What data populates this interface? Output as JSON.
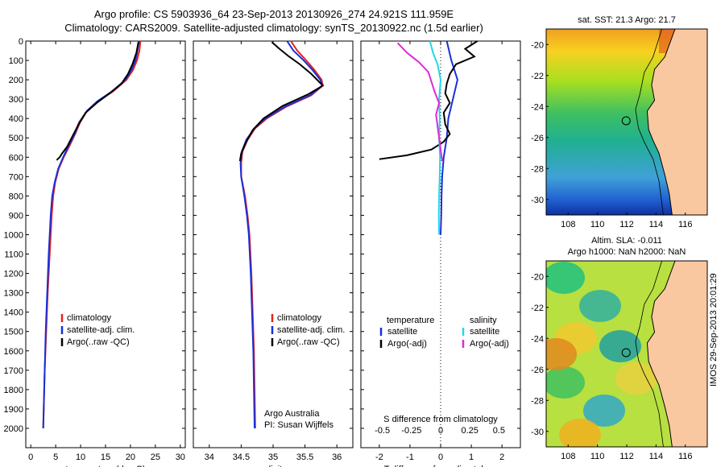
{
  "header": {
    "line1": "Argo profile: CS 5903936_64 23-Sep-2013 20130926_274 24.921S 111.959E",
    "line2": "Climatology: CARS2009. Satellite-adjusted climatology: synTS_20130922.nc (1.5d earlier)"
  },
  "timestamp": "IMOS 29-Sep-2013 20:01:29",
  "colors": {
    "climatology": "#e8201c",
    "satellite": "#1a2fd8",
    "argo": "#000000",
    "sal_satellite": "#22d8e8",
    "sal_argo": "#e028d8",
    "land": "#fac8a0"
  },
  "depth_ticks": [
    0,
    100,
    200,
    300,
    400,
    500,
    600,
    700,
    800,
    900,
    1000,
    1100,
    1200,
    1300,
    1400,
    1500,
    1600,
    1700,
    1800,
    1900,
    2000
  ],
  "chart_data": [
    {
      "type": "line",
      "name": "temperature_profile",
      "xlabel": "temperature (deg C)",
      "ylabel": "depth",
      "xlim": [
        -1,
        31
      ],
      "ylim": [
        2100,
        0
      ],
      "xticks": [
        0,
        5,
        10,
        15,
        20,
        25,
        30
      ],
      "legend": [
        "climatology",
        "satellite-adj. clim.",
        "Argo(..raw -QC)"
      ],
      "series": [
        {
          "name": "climatology",
          "color": "#e8201c",
          "points": [
            [
              22,
              0
            ],
            [
              21.8,
              50
            ],
            [
              21.3,
              100
            ],
            [
              20.5,
              150
            ],
            [
              19.2,
              200
            ],
            [
              16.5,
              260
            ],
            [
              13.5,
              310
            ],
            [
              11.3,
              360
            ],
            [
              9.9,
              420
            ],
            [
              8.9,
              480
            ],
            [
              7.8,
              540
            ],
            [
              6.6,
              600
            ],
            [
              5.6,
              660
            ],
            [
              4.9,
              730
            ],
            [
              4.5,
              800
            ],
            [
              4.2,
              900
            ],
            [
              3.8,
              1100
            ],
            [
              3.4,
              1300
            ],
            [
              3.1,
              1500
            ],
            [
              2.8,
              1700
            ],
            [
              2.6,
              1900
            ],
            [
              2.5,
              2000
            ]
          ]
        },
        {
          "name": "satellite-adj. clim.",
          "color": "#1a2fd8",
          "points": [
            [
              21.7,
              0
            ],
            [
              21.4,
              50
            ],
            [
              21,
              100
            ],
            [
              20.2,
              150
            ],
            [
              19,
              200
            ],
            [
              16.3,
              260
            ],
            [
              13.4,
              310
            ],
            [
              11.3,
              360
            ],
            [
              9.7,
              420
            ],
            [
              8.8,
              480
            ],
            [
              7.6,
              540
            ],
            [
              6.5,
              600
            ],
            [
              5.5,
              660
            ],
            [
              4.8,
              730
            ],
            [
              4.3,
              800
            ],
            [
              4.0,
              900
            ],
            [
              3.6,
              1100
            ],
            [
              3.3,
              1300
            ],
            [
              3.0,
              1500
            ],
            [
              2.8,
              1700
            ],
            [
              2.6,
              1900
            ],
            [
              2.5,
              2000
            ]
          ]
        },
        {
          "name": "Argo",
          "color": "#000000",
          "points": [
            [
              21.6,
              5
            ],
            [
              21.2,
              60
            ],
            [
              20.4,
              120
            ],
            [
              19.5,
              170
            ],
            [
              18.2,
              220
            ],
            [
              15.8,
              270
            ],
            [
              13.2,
              320
            ],
            [
              11.0,
              370
            ],
            [
              9.6,
              430
            ],
            [
              8.4,
              490
            ],
            [
              7.3,
              545
            ],
            [
              6.3,
              580
            ],
            [
              5.8,
              600
            ],
            [
              5.2,
              615
            ]
          ]
        }
      ]
    },
    {
      "type": "line",
      "name": "salinity_profile",
      "xlabel": "salinity",
      "xlim": [
        33.75,
        36.25
      ],
      "ylim": [
        2100,
        0
      ],
      "xticks": [
        34,
        34.5,
        35,
        35.5,
        36
      ],
      "xticklabels": [
        "34",
        "34.5",
        "35",
        "35.5",
        "36"
      ],
      "legend": [
        "climatology",
        "satellite-adj. clim.",
        "Argo(..raw -QC)"
      ],
      "credit": [
        "Argo Australia",
        "PI: Susan Wijffels"
      ],
      "series": [
        {
          "name": "climatology",
          "color": "#e8201c",
          "points": [
            [
              35.28,
              0
            ],
            [
              35.38,
              50
            ],
            [
              35.52,
              100
            ],
            [
              35.65,
              150
            ],
            [
              35.76,
              200
            ],
            [
              35.78,
              230
            ],
            [
              35.6,
              280
            ],
            [
              35.2,
              340
            ],
            [
              34.9,
              400
            ],
            [
              34.72,
              450
            ],
            [
              34.6,
              510
            ],
            [
              34.52,
              570
            ],
            [
              34.5,
              630
            ],
            [
              34.5,
              700
            ],
            [
              34.56,
              800
            ],
            [
              34.6,
              900
            ],
            [
              34.63,
              1000
            ],
            [
              34.66,
              1200
            ],
            [
              34.68,
              1400
            ],
            [
              34.7,
              1600
            ],
            [
              34.71,
              1800
            ],
            [
              34.72,
              2000
            ]
          ]
        },
        {
          "name": "satellite-adj. clim.",
          "color": "#1a2fd8",
          "points": [
            [
              35.22,
              0
            ],
            [
              35.32,
              50
            ],
            [
              35.48,
              100
            ],
            [
              35.62,
              150
            ],
            [
              35.74,
              200
            ],
            [
              35.77,
              230
            ],
            [
              35.58,
              280
            ],
            [
              35.18,
              340
            ],
            [
              34.88,
              400
            ],
            [
              34.71,
              450
            ],
            [
              34.58,
              510
            ],
            [
              34.51,
              570
            ],
            [
              34.49,
              630
            ],
            [
              34.5,
              700
            ],
            [
              34.55,
              800
            ],
            [
              34.59,
              900
            ],
            [
              34.62,
              1000
            ],
            [
              34.65,
              1200
            ],
            [
              34.67,
              1400
            ],
            [
              34.69,
              1600
            ],
            [
              34.7,
              1800
            ],
            [
              34.71,
              2000
            ]
          ]
        },
        {
          "name": "Argo",
          "color": "#000000",
          "points": [
            [
              34.98,
              5
            ],
            [
              35.1,
              40
            ],
            [
              35.25,
              80
            ],
            [
              35.42,
              120
            ],
            [
              35.6,
              170
            ],
            [
              35.72,
              210
            ],
            [
              35.78,
              230
            ],
            [
              35.55,
              275
            ],
            [
              35.15,
              335
            ],
            [
              34.85,
              400
            ],
            [
              34.68,
              460
            ],
            [
              34.58,
              520
            ],
            [
              34.5,
              580
            ],
            [
              34.48,
              620
            ]
          ]
        }
      ]
    },
    {
      "type": "line",
      "name": "difference_from_climatology",
      "xlabel": "T difference from climatology",
      "xlabel_top": "S difference from climatology",
      "xlim": [
        -2.6,
        2.6
      ],
      "ylim": [
        2100,
        0
      ],
      "xticks": [
        -2,
        -1,
        0,
        1,
        2
      ],
      "s_ticks": [
        -0.5,
        -0.25,
        0,
        0.25,
        0.5
      ],
      "legend_headers": [
        "temperature",
        "salinity"
      ],
      "legend": [
        "satellite",
        "Argo(-adj)",
        "satellite",
        "Argo(-adj)"
      ],
      "series": [
        {
          "name": "T satellite",
          "color": "#1a2fd8",
          "points": [
            [
              0.2,
              0
            ],
            [
              0.35,
              100
            ],
            [
              0.55,
              200
            ],
            [
              0.4,
              300
            ],
            [
              0.25,
              400
            ],
            [
              0.2,
              500
            ],
            [
              0.1,
              600
            ],
            [
              0.05,
              700
            ],
            [
              0.03,
              800
            ],
            [
              0.02,
              900
            ],
            [
              0.0,
              1000
            ]
          ]
        },
        {
          "name": "T Argo(-adj)",
          "color": "#000000",
          "points": [
            [
              1.2,
              0
            ],
            [
              0.8,
              40
            ],
            [
              1.1,
              80
            ],
            [
              0.5,
              120
            ],
            [
              0.3,
              170
            ],
            [
              0.2,
              220
            ],
            [
              0.15,
              270
            ],
            [
              0.3,
              320
            ],
            [
              0.1,
              370
            ],
            [
              0.15,
              430
            ],
            [
              0.3,
              480
            ],
            [
              0.1,
              520
            ],
            [
              -0.3,
              560
            ],
            [
              -1.1,
              590
            ],
            [
              -2.0,
              610
            ]
          ]
        },
        {
          "name": "S satellite",
          "color": "#22d8e8",
          "points": [
            [
              -0.35,
              0
            ],
            [
              -0.25,
              60
            ],
            [
              -0.1,
              120
            ],
            [
              0.0,
              200
            ],
            [
              -0.05,
              300
            ],
            [
              -0.03,
              400
            ],
            [
              -0.05,
              500
            ],
            [
              -0.02,
              600
            ],
            [
              -0.03,
              700
            ],
            [
              -0.05,
              800
            ],
            [
              -0.06,
              900
            ],
            [
              -0.05,
              1000
            ]
          ]
        },
        {
          "name": "S Argo(-adj)",
          "color": "#e028d8",
          "points": [
            [
              -1.4,
              10
            ],
            [
              -1.1,
              60
            ],
            [
              -0.7,
              110
            ],
            [
              -0.4,
              160
            ],
            [
              -0.3,
              210
            ],
            [
              -0.2,
              260
            ],
            [
              -0.05,
              320
            ],
            [
              -0.15,
              380
            ],
            [
              -0.1,
              440
            ],
            [
              -0.05,
              500
            ],
            [
              0.0,
              560
            ],
            [
              0.05,
              620
            ]
          ]
        }
      ]
    }
  ],
  "maps": [
    {
      "name": "sst_map",
      "title": "sat. SST: 21.3 Argo: 21.7",
      "xticks": [
        "108",
        "110",
        "112",
        "114",
        "116"
      ],
      "yticks": [
        "-20",
        "-22",
        "-24",
        "-26",
        "-28",
        "-30"
      ],
      "lon_range": [
        106.5,
        117.5
      ],
      "lat_range": [
        -31,
        -19
      ],
      "argo_position": [
        111.959,
        -24.921
      ]
    },
    {
      "name": "sla_map",
      "title1": "Altim. SLA: -0.011",
      "title2": "Argo h1000: NaN h2000: NaN",
      "xticks": [
        "108",
        "110",
        "112",
        "114",
        "116"
      ],
      "yticks": [
        "-20",
        "-22",
        "-24",
        "-26",
        "-28",
        "-30"
      ],
      "lon_range": [
        106.5,
        117.5
      ],
      "lat_range": [
        -31,
        -19
      ],
      "argo_position": [
        111.959,
        -24.921
      ]
    }
  ]
}
